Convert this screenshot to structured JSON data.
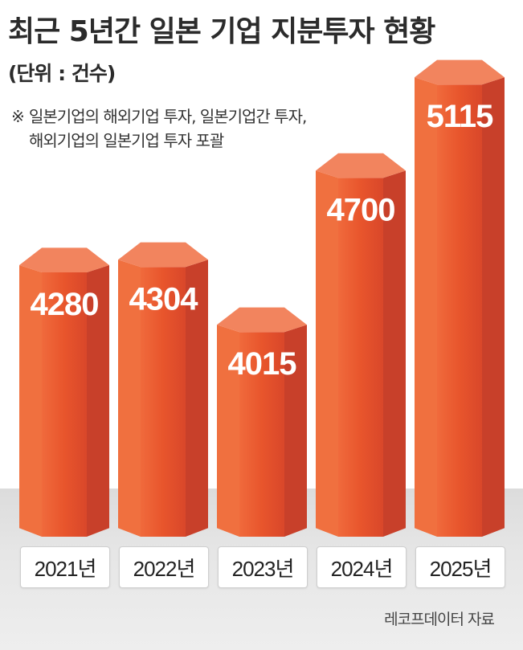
{
  "header": {
    "title": "최근 5년간 일본 기업 지분투자 현황",
    "unit": "(단위 : 건수)",
    "note_mark": "※",
    "note_line1": "일본기업의 해외기업 투자, 일본기업간 투자,",
    "note_line2": "해외기업의 일본기업 투자 포괄"
  },
  "source": "레코프데이터 자료",
  "colors": {
    "bar_face": "#e8552c",
    "bar_side": "#c8402a",
    "bar_top": "#f2845e",
    "label": "#ffffff"
  },
  "chart_data": {
    "type": "bar",
    "categories": [
      "2021년",
      "2022년",
      "2023년",
      "2024년",
      "2025년"
    ],
    "values": [
      4280,
      4304,
      4015,
      4700,
      5115
    ],
    "title": "최근 5년간 일본 기업 지분투자 현황",
    "ylabel": "",
    "xlabel": "",
    "grid": false,
    "legend": "none"
  }
}
